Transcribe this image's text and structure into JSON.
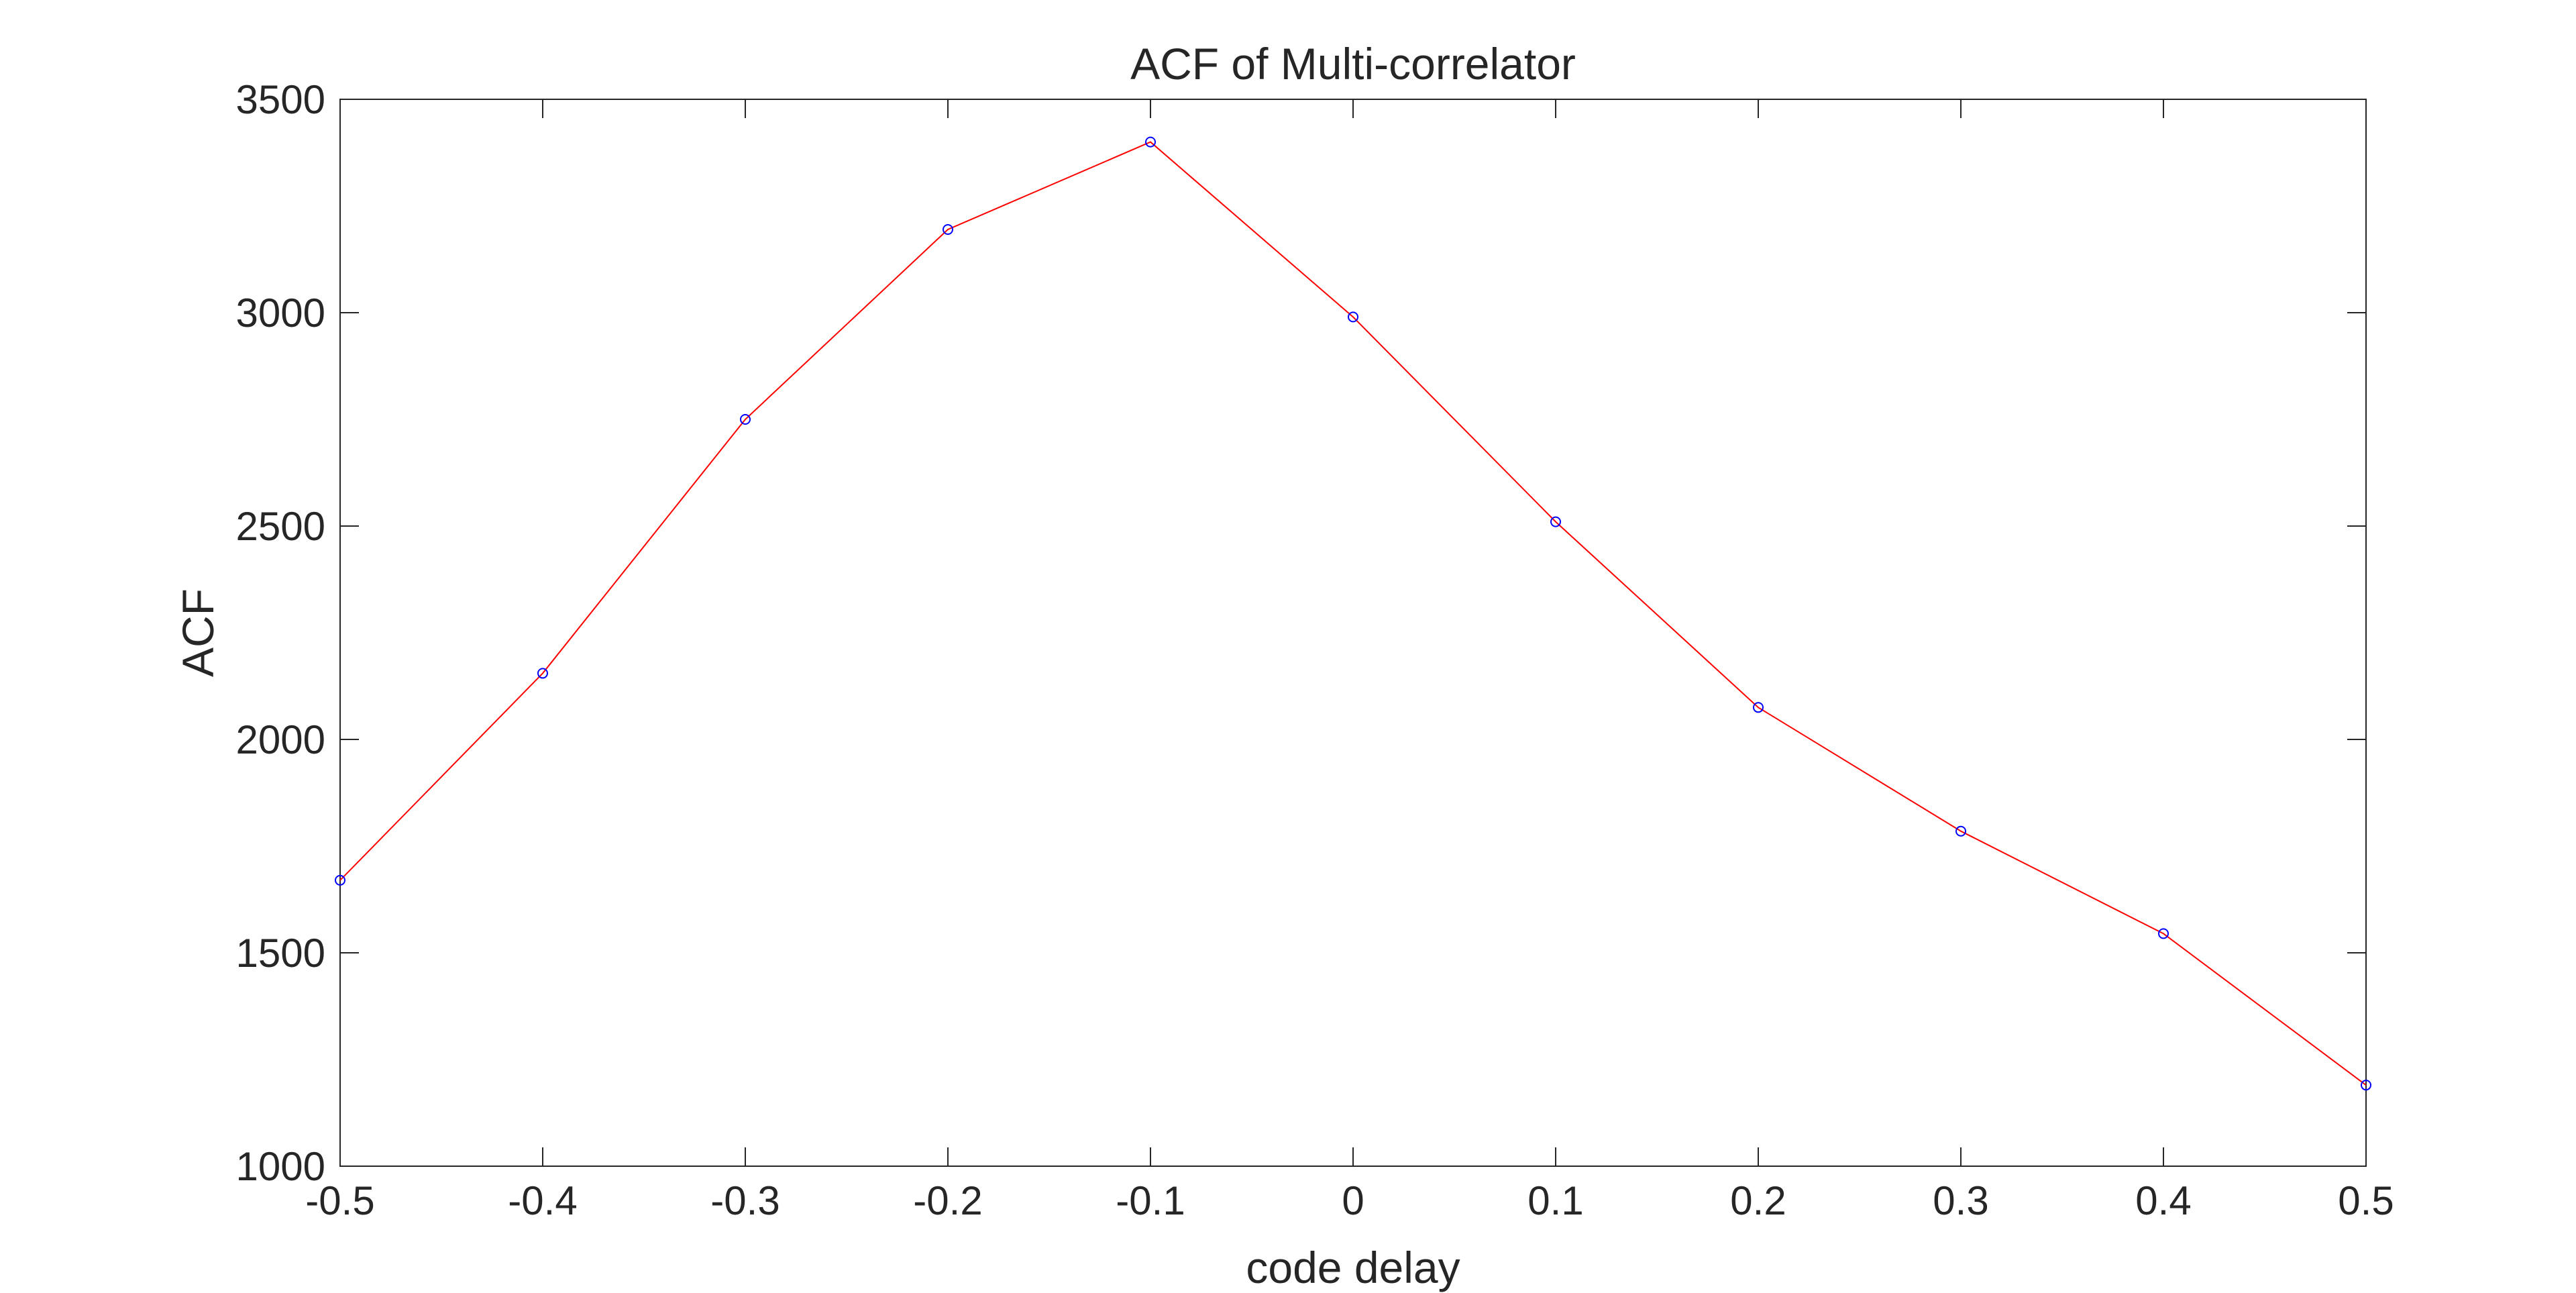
{
  "chart_data": {
    "type": "line",
    "title": "ACF of Multi-correlator",
    "xlabel": "code delay",
    "ylabel": "ACF",
    "xlim": [
      -0.5,
      0.5
    ],
    "ylim": [
      1000,
      3500
    ],
    "xticks": [
      -0.5,
      -0.4,
      -0.3,
      -0.2,
      -0.1,
      0,
      0.1,
      0.2,
      0.3,
      0.4,
      0.5
    ],
    "xtick_labels": [
      "-0.5",
      "-0.4",
      "-0.3",
      "-0.2",
      "-0.1",
      "0",
      "0.1",
      "0.2",
      "0.3",
      "0.4",
      "0.5"
    ],
    "yticks": [
      1000,
      1500,
      2000,
      2500,
      3000,
      3500
    ],
    "ytick_labels": [
      "1000",
      "1500",
      "2000",
      "2500",
      "3000",
      "3500"
    ],
    "grid": false,
    "box": true,
    "series": [
      {
        "line_color": "#ff0000",
        "marker": "circle",
        "marker_color": "#0000ff",
        "x": [
          -0.5,
          -0.4,
          -0.3,
          -0.2,
          -0.1,
          0,
          0.1,
          0.2,
          0.3,
          0.4,
          0.5
        ],
        "y": [
          1670,
          2155,
          2750,
          3195,
          3400,
          2990,
          2510,
          2075,
          1785,
          1545,
          1190
        ]
      }
    ]
  }
}
